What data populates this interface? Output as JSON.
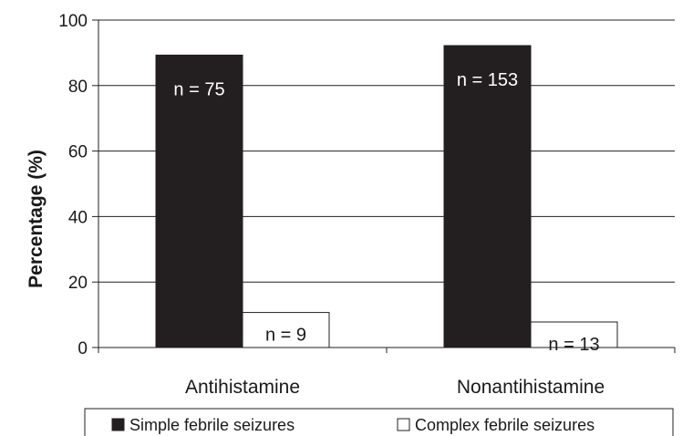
{
  "chart_data": {
    "type": "bar",
    "categories": [
      "Antihistamine",
      "Nonantihistamine"
    ],
    "series": [
      {
        "name": "Simple febrile seizures",
        "values": [
          89.3,
          92.2
        ],
        "labels": [
          "n = 75",
          "n = 153"
        ],
        "color": "#231f20"
      },
      {
        "name": "Complex febrile seizures",
        "values": [
          10.7,
          7.8
        ],
        "labels": [
          "n = 9",
          "n = 13"
        ],
        "color": "#ffffff"
      }
    ],
    "title": "",
    "xlabel": "",
    "ylabel": "Percentage (%)",
    "ylim": [
      0,
      100
    ],
    "yticks": [
      0,
      20,
      40,
      60,
      80,
      100
    ],
    "grid": true,
    "legend_position": "bottom"
  }
}
